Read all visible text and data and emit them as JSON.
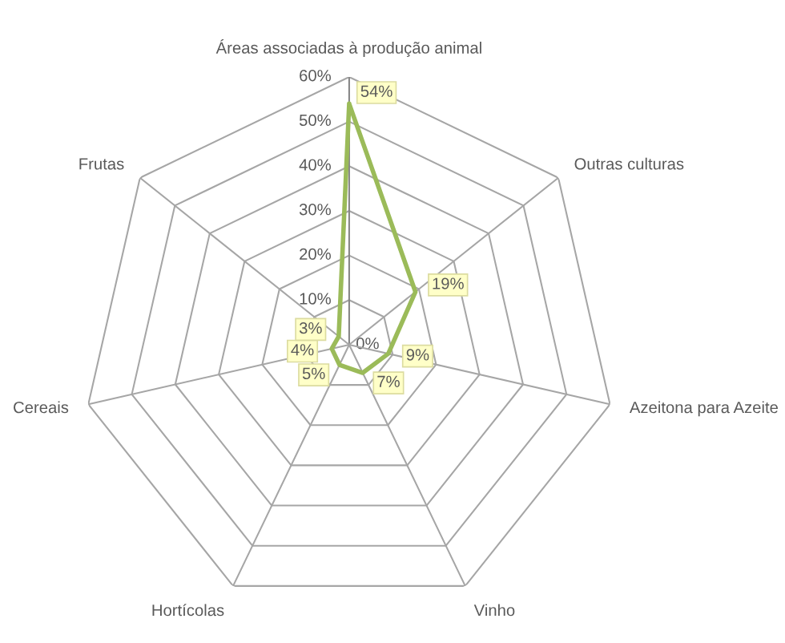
{
  "chart_data": {
    "type": "radar",
    "categories": [
      "Áreas associadas à produção animal",
      "Outras culturas",
      "Azeitona para Azeite",
      "Vinho",
      "Hortícolas",
      "Cereais",
      "Frutas"
    ],
    "series": [
      {
        "color": "#9bbb59",
        "values": [
          54,
          19,
          9,
          7,
          5,
          4,
          3
        ],
        "value_labels": [
          "54%",
          "19%",
          "9%",
          "7%",
          "5%",
          "4%",
          "3%"
        ]
      }
    ],
    "ylim": [
      0,
      60
    ],
    "yticks": [
      {
        "value": 0,
        "label": "0%"
      },
      {
        "value": 10,
        "label": "10%"
      },
      {
        "value": 20,
        "label": "20%"
      },
      {
        "value": 30,
        "label": "30%"
      },
      {
        "value": 40,
        "label": "40%"
      },
      {
        "value": 50,
        "label": "50%"
      },
      {
        "value": 60,
        "label": "60%"
      }
    ],
    "grid": true
  }
}
